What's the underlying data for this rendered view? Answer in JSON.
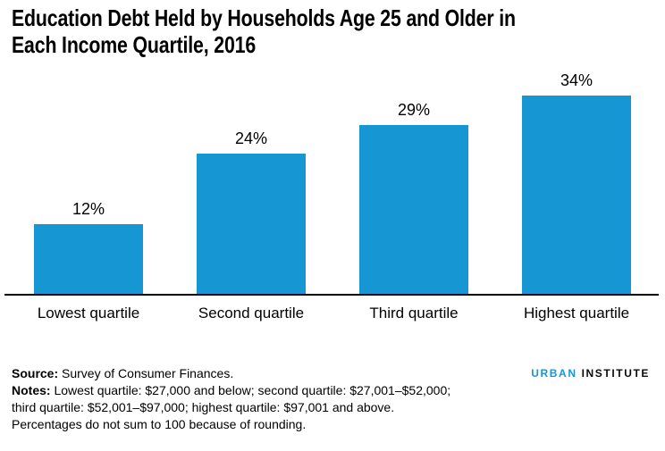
{
  "title": {
    "lines": [
      "Education Debt Held by Households Age 25 and Older in",
      "Each Income Quartile, 2016"
    ]
  },
  "chart_data": {
    "type": "bar",
    "title": "Education Debt Held by Households Age 25 and Older in Each Income Quartile, 2016",
    "categories": [
      "Lowest quartile",
      "Second quartile",
      "Third quartile",
      "Highest quartile"
    ],
    "values": [
      12,
      24,
      29,
      34
    ],
    "value_labels": [
      "12%",
      "24%",
      "29%",
      "34%"
    ],
    "unit": "percent",
    "bar_color": "#1696d2",
    "axis_color": "#000000",
    "ylim": [
      0,
      38
    ],
    "grid": false,
    "legend": "none",
    "xlabel": "",
    "ylabel": ""
  },
  "notes": {
    "lines": [
      {
        "bold": "Source:",
        "text": " Survey of Consumer Finances."
      },
      {
        "bold": "Notes:",
        "text": " Lowest quartile: $27,000 and below; second quartile: $27,001–$52,000;"
      },
      {
        "bold": "",
        "text": "third quartile: $52,001–$97,000; highest quartile: $97,001 and above."
      },
      {
        "bold": "",
        "text": "Percentages do not sum to 100 because of rounding."
      }
    ]
  },
  "logo": {
    "word1": "URBAN",
    "word2": "INSTITUTE",
    "accent_color": "#1696d2",
    "text_color": "#0a0a0a"
  }
}
